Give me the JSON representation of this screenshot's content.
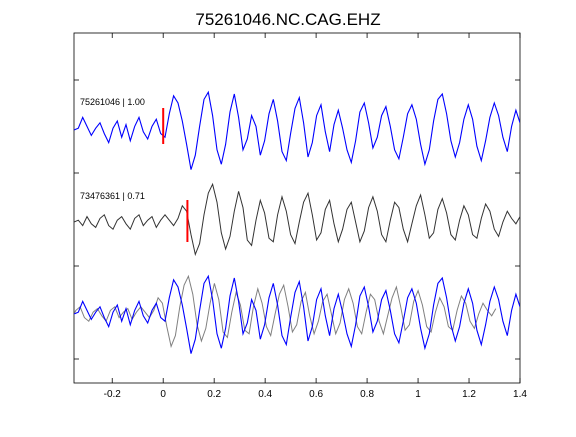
{
  "chart_data": {
    "type": "line",
    "title": "75261046.NC.CAG.EHZ",
    "xlabel": "",
    "ylabel": "",
    "xlim": [
      -0.35,
      1.4
    ],
    "x_ticks": [
      -0.2,
      0,
      0.2,
      0.4,
      0.6,
      0.8,
      1,
      1.2,
      1.4
    ],
    "x_tick_labels": [
      "-0.2",
      "0",
      "0.2",
      "0.4",
      "0.6",
      "0.8",
      "1",
      "1.2",
      "1.4"
    ],
    "grid": false,
    "colors": {
      "master": "#0000ff",
      "similar": "#333333",
      "overlay_gray": "#808080",
      "pick": "#ff0000"
    },
    "traces": [
      {
        "label": "75261046 | 1.00",
        "event_id": "75261046",
        "cc": 1.0,
        "color": "#0000ff",
        "pick_x": 0.0,
        "pick_half_height": 18
      },
      {
        "label": "73476361 | 0.71",
        "event_id": "73476361",
        "cc": 0.71,
        "color": "#333333",
        "pick_x": 0.095,
        "pick_half_height": 18
      }
    ],
    "series": [
      {
        "x": [
          -0.35,
          -0.333,
          -0.316,
          -0.299,
          -0.282,
          -0.265,
          -0.248,
          -0.231,
          -0.214,
          -0.197,
          -0.18,
          -0.163,
          -0.146,
          -0.129,
          -0.112,
          -0.095,
          -0.078,
          -0.061,
          -0.044,
          -0.027,
          -0.01,
          0.007,
          0.024,
          0.041,
          0.058,
          0.075,
          0.092,
          0.109,
          0.126,
          0.143,
          0.16,
          0.177,
          0.194,
          0.211,
          0.228,
          0.245,
          0.262,
          0.279,
          0.296,
          0.313,
          0.33,
          0.347,
          0.364,
          0.381,
          0.398,
          0.415,
          0.432,
          0.449,
          0.466,
          0.483,
          0.5,
          0.517,
          0.534,
          0.551,
          0.568,
          0.585,
          0.602,
          0.619,
          0.636,
          0.653,
          0.67,
          0.687,
          0.704,
          0.721,
          0.738,
          0.755,
          0.772,
          0.789,
          0.806,
          0.823,
          0.84,
          0.857,
          0.874,
          0.891,
          0.908,
          0.925,
          0.942,
          0.959,
          0.976,
          0.993,
          1.01,
          1.027,
          1.044,
          1.061,
          1.078,
          1.095,
          1.112,
          1.129,
          1.146,
          1.163,
          1.18,
          1.197,
          1.214,
          1.231,
          1.248,
          1.265,
          1.282,
          1.299,
          1.316,
          1.333,
          1.35,
          1.367,
          1.384,
          1.4
        ],
        "y": [
          0.0,
          0.05,
          0.35,
          0.1,
          -0.15,
          0.05,
          0.2,
          -0.1,
          -0.35,
          0.05,
          0.25,
          -0.2,
          0.15,
          -0.3,
          0.1,
          0.35,
          -0.05,
          -0.25,
          0.1,
          0.3,
          -0.1,
          -0.2,
          0.45,
          0.95,
          0.75,
          0.25,
          -0.4,
          -1.1,
          -0.7,
          0.1,
          0.85,
          1.05,
          0.4,
          -0.55,
          -0.95,
          -0.4,
          0.5,
          1.0,
          0.35,
          -0.55,
          -0.25,
          0.4,
          0.1,
          -0.7,
          -0.3,
          0.45,
          0.85,
          0.25,
          -0.6,
          -0.85,
          -0.1,
          0.6,
          0.9,
          0.2,
          -0.75,
          -0.35,
          0.4,
          0.7,
          -0.05,
          -0.6,
          0.15,
          0.55,
          0.05,
          -0.55,
          -0.9,
          -0.3,
          0.5,
          0.75,
          0.2,
          -0.5,
          -0.2,
          0.4,
          0.65,
          0.1,
          -0.55,
          -0.8,
          -0.2,
          0.45,
          0.7,
          0.3,
          -0.4,
          -0.95,
          -0.55,
          0.25,
          0.85,
          1.0,
          0.45,
          -0.3,
          -0.75,
          -0.35,
          0.3,
          0.7,
          0.3,
          -0.45,
          -0.85,
          -0.3,
          0.35,
          0.75,
          0.4,
          -0.2,
          -0.6,
          0.1,
          0.55,
          0.2
        ]
      },
      {
        "x": [
          -0.35,
          -0.333,
          -0.316,
          -0.299,
          -0.282,
          -0.265,
          -0.248,
          -0.231,
          -0.214,
          -0.197,
          -0.18,
          -0.163,
          -0.146,
          -0.129,
          -0.112,
          -0.095,
          -0.078,
          -0.061,
          -0.044,
          -0.027,
          -0.01,
          0.007,
          0.024,
          0.041,
          0.058,
          0.075,
          0.092,
          0.109,
          0.126,
          0.143,
          0.16,
          0.177,
          0.194,
          0.211,
          0.228,
          0.245,
          0.262,
          0.279,
          0.296,
          0.313,
          0.33,
          0.347,
          0.364,
          0.381,
          0.398,
          0.415,
          0.432,
          0.449,
          0.466,
          0.483,
          0.5,
          0.517,
          0.534,
          0.551,
          0.568,
          0.585,
          0.602,
          0.619,
          0.636,
          0.653,
          0.67,
          0.687,
          0.704,
          0.721,
          0.738,
          0.755,
          0.772,
          0.789,
          0.806,
          0.823,
          0.84,
          0.857,
          0.874,
          0.891,
          0.908,
          0.925,
          0.942,
          0.959,
          0.976,
          0.993,
          1.01,
          1.027,
          1.044,
          1.061,
          1.078,
          1.095,
          1.112,
          1.129,
          1.146,
          1.163,
          1.18,
          1.197,
          1.214,
          1.231,
          1.248,
          1.265,
          1.282,
          1.299,
          1.316,
          1.333,
          1.35,
          1.367,
          1.384,
          1.4
        ],
        "y": [
          0.0,
          0.05,
          -0.1,
          0.15,
          -0.05,
          -0.15,
          0.1,
          0.2,
          -0.1,
          -0.2,
          0.05,
          0.15,
          -0.05,
          -0.2,
          0.1,
          0.2,
          -0.1,
          0.05,
          0.15,
          -0.15,
          0.05,
          0.2,
          0.05,
          -0.1,
          0.1,
          0.45,
          0.3,
          -0.35,
          -0.9,
          -0.6,
          0.2,
          0.8,
          1.05,
          0.55,
          -0.3,
          -0.75,
          -0.4,
          0.3,
          0.85,
          0.4,
          -0.5,
          -0.65,
          0.05,
          0.6,
          0.25,
          -0.45,
          -0.55,
          0.2,
          0.7,
          0.3,
          -0.35,
          -0.6,
          0.0,
          0.55,
          0.8,
          0.2,
          -0.5,
          -0.3,
          0.35,
          0.6,
          -0.05,
          -0.55,
          -0.2,
          0.35,
          0.55,
          0.0,
          -0.55,
          -0.25,
          0.4,
          0.7,
          0.3,
          -0.35,
          -0.55,
          0.05,
          0.55,
          0.4,
          -0.2,
          -0.55,
          -0.05,
          0.45,
          0.75,
          0.2,
          -0.45,
          -0.3,
          0.35,
          0.65,
          0.25,
          -0.35,
          -0.5,
          0.05,
          0.45,
          0.2,
          -0.35,
          -0.45,
          0.1,
          0.5,
          0.3,
          -0.2,
          -0.4,
          0.0,
          0.3,
          0.1,
          -0.05,
          0.15
        ]
      }
    ]
  }
}
